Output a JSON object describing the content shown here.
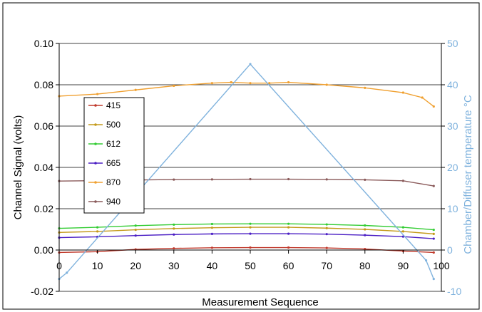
{
  "chart_data": {
    "type": "line",
    "title": "",
    "xlabel": "Measurement Sequence",
    "ylabel": "Channel Signal (volts)",
    "y2label": "Chamber/Diffuser temperature °C",
    "xlim": [
      0,
      100
    ],
    "ylim": [
      -0.02,
      0.1
    ],
    "y2lim": [
      -10,
      50
    ],
    "x_ticks": [
      "0",
      "10",
      "20",
      "30",
      "40",
      "50",
      "60",
      "70",
      "80",
      "90",
      "100"
    ],
    "y_ticks": [
      "0.10",
      "0.08",
      "0.06",
      "0.04",
      "0.02",
      "0.00",
      "-0.02"
    ],
    "y2_ticks": [
      "50",
      "40",
      "30",
      "20",
      "10",
      "0",
      "-10"
    ],
    "grid": true,
    "legend_position": "left",
    "legend": [
      "415",
      "500",
      "612",
      "665",
      "870",
      "940"
    ],
    "series": [
      {
        "name": "415",
        "color": "#c0392b",
        "axis": "left",
        "x": [
          0,
          10,
          20,
          30,
          40,
          50,
          60,
          70,
          80,
          90,
          98
        ],
        "y": [
          -0.0012,
          -0.0008,
          0.0003,
          0.0008,
          0.0011,
          0.0012,
          0.0012,
          0.001,
          0.0005,
          -0.0005,
          -0.0012
        ]
      },
      {
        "name": "500",
        "color": "#c49a1a",
        "axis": "left",
        "x": [
          0,
          10,
          20,
          30,
          40,
          50,
          60,
          70,
          80,
          90,
          98
        ],
        "y": [
          0.0085,
          0.009,
          0.0098,
          0.0104,
          0.0108,
          0.011,
          0.011,
          0.0106,
          0.01,
          0.009,
          0.0078
        ]
      },
      {
        "name": "612",
        "color": "#33cc33",
        "axis": "left",
        "x": [
          0,
          10,
          20,
          30,
          40,
          50,
          60,
          70,
          80,
          90,
          98
        ],
        "y": [
          0.0105,
          0.011,
          0.0118,
          0.0123,
          0.0126,
          0.0127,
          0.0127,
          0.0124,
          0.0119,
          0.011,
          0.0098
        ]
      },
      {
        "name": "665",
        "color": "#4b1fc4",
        "axis": "left",
        "x": [
          0,
          10,
          20,
          30,
          40,
          50,
          60,
          70,
          80,
          90,
          98
        ],
        "y": [
          0.006,
          0.0064,
          0.007,
          0.0075,
          0.0078,
          0.0079,
          0.0079,
          0.0077,
          0.0072,
          0.0065,
          0.0055
        ]
      },
      {
        "name": "870",
        "color": "#f0a030",
        "axis": "left",
        "x": [
          0,
          10,
          20,
          30,
          40,
          45,
          50,
          55,
          60,
          70,
          80,
          90,
          95,
          98
        ],
        "y": [
          0.0745,
          0.0755,
          0.0775,
          0.0795,
          0.0808,
          0.0812,
          0.0808,
          0.0808,
          0.0812,
          0.08,
          0.0785,
          0.0762,
          0.0738,
          0.0695
        ]
      },
      {
        "name": "940",
        "color": "#8a5a5a",
        "axis": "left",
        "x": [
          0,
          10,
          20,
          30,
          40,
          50,
          60,
          70,
          80,
          90,
          98
        ],
        "y": [
          0.0334,
          0.0336,
          0.0339,
          0.0341,
          0.0342,
          0.0343,
          0.0343,
          0.0342,
          0.034,
          0.0335,
          0.031
        ]
      },
      {
        "name": "",
        "color": "#7fb2dd",
        "axis": "right",
        "x": [
          0,
          2,
          50,
          96,
          98
        ],
        "y": [
          -7,
          -5.5,
          45,
          -2.5,
          -7
        ]
      }
    ]
  }
}
